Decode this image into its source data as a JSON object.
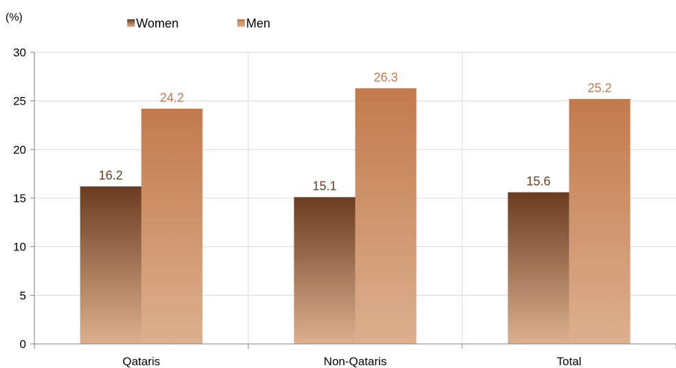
{
  "chart_data": {
    "type": "bar",
    "unit_label": "(%)",
    "categories": [
      "Qataris",
      "Non-Qataris",
      "Total"
    ],
    "series": [
      {
        "name": "Women",
        "values": [
          16.2,
          15.1,
          15.6
        ],
        "color_top": "#6b3c1f",
        "color_bottom": "#dcb08f",
        "label_color": "#6b3c1f"
      },
      {
        "name": "Men",
        "values": [
          24.2,
          26.3,
          25.2
        ],
        "color_top": "#c27a4c",
        "color_bottom": "#dcb08f",
        "label_color": "#c27a4c"
      }
    ],
    "ylim": [
      0,
      30
    ],
    "yticks": [
      0,
      5,
      10,
      15,
      20,
      25,
      30
    ],
    "grid": true,
    "legend_position": "top"
  }
}
